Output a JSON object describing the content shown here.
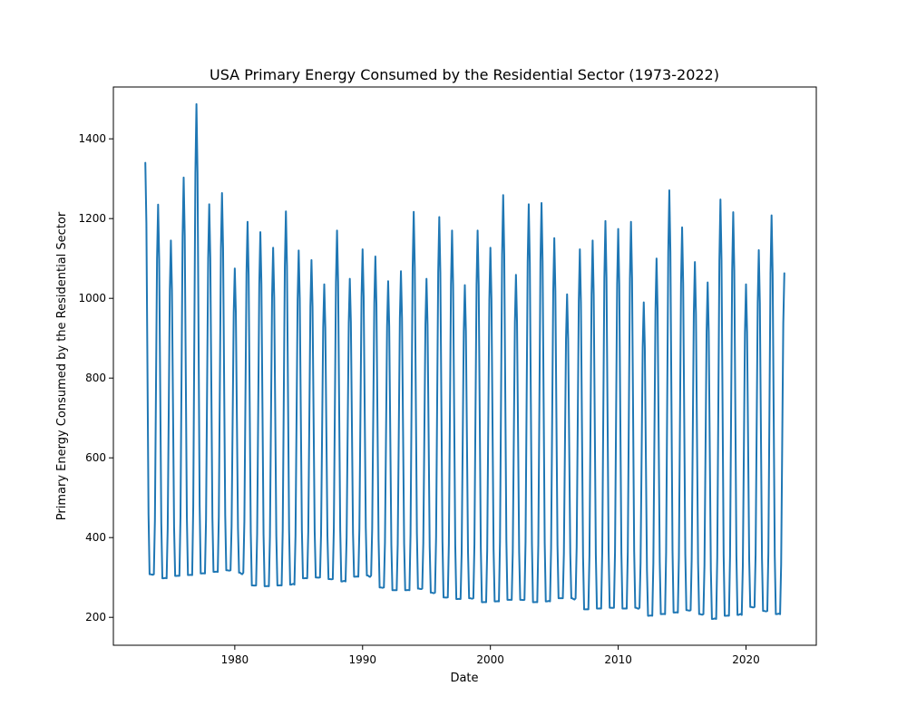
{
  "chart_data": {
    "type": "line",
    "title": "USA Primary Energy Consumed by the Residential Sector (1973-2022)",
    "xlabel": "Date",
    "ylabel": "Primary Energy Consumed by the Residential Sector",
    "xlim": [
      1970.5,
      2025.5
    ],
    "ylim": [
      130,
      1530
    ],
    "grid": false,
    "legend": "none",
    "x_ticks": [
      1980,
      1990,
      2000,
      2010,
      2020
    ],
    "y_ticks": [
      200,
      400,
      600,
      800,
      1000,
      1200,
      1400
    ],
    "colors": {
      "series": "#1f77b4"
    },
    "series": [
      {
        "x_start": 1973.0,
        "x_step": 0.0833333,
        "peaks": [
          1340,
          1235,
          1145,
          1303,
          1487,
          1236,
          1264,
          1075,
          1192,
          1166,
          1127,
          1218,
          1120,
          1096,
          1035,
          1170,
          1049,
          1123,
          1105,
          1043,
          1068,
          1217,
          1049,
          1204,
          1170,
          1033,
          1170,
          1127,
          1259,
          1059,
          1236,
          1239,
          1151,
          1010,
          1123,
          1145,
          1194,
          1174,
          1192,
          990,
          1100,
          1271,
          1178,
          1091,
          1040,
          1248,
          1216,
          1035,
          1121,
          1208
        ],
        "troughs": [
          308,
          298,
          304,
          306,
          310,
          314,
          318,
          312,
          280,
          278,
          280,
          282,
          298,
          300,
          296,
          290,
          302,
          305,
          275,
          268,
          268,
          272,
          262,
          250,
          246,
          248,
          238,
          240,
          244,
          244,
          238,
          240,
          248,
          248,
          220,
          222,
          224,
          222,
          224,
          204,
          208,
          212,
          218,
          208,
          196,
          204,
          206,
          226,
          216,
          208,
          218
        ],
        "final_value": 1063
      }
    ]
  }
}
